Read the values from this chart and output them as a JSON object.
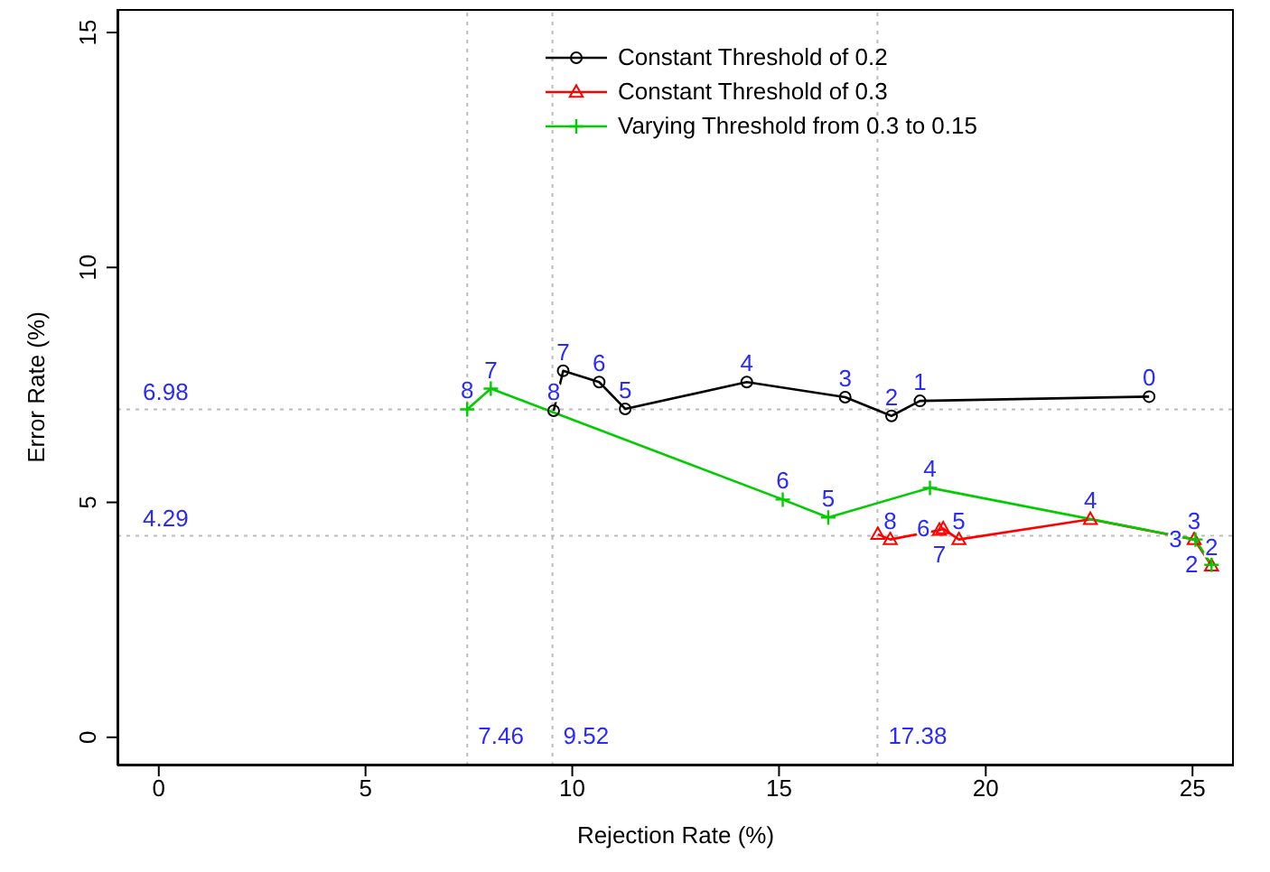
{
  "chart_data": {
    "type": "line",
    "xlabel": "Rejection Rate (%)",
    "ylabel": "Error Rate (%)",
    "xlim": [
      -1,
      26
    ],
    "ylim": [
      -0.6,
      15.5
    ],
    "xticks": [
      0,
      5,
      10,
      15,
      20,
      25
    ],
    "yticks": [
      0,
      5,
      10,
      15
    ],
    "grid": false,
    "legend": "top right",
    "line_style": "solid",
    "series": [
      {
        "name": "Constant Threshold of 0.2",
        "color": "#000000",
        "marker": "circle",
        "x": [
          23.95,
          18.41,
          17.72,
          16.6,
          14.22,
          11.28,
          10.65,
          9.78,
          9.55
        ],
        "values": [
          7.25,
          7.16,
          6.84,
          7.24,
          7.56,
          6.99,
          7.56,
          7.8,
          6.95
        ]
      },
      {
        "name": "Constant Threshold of 0.3",
        "color": "#ff0000",
        "marker": "triangle",
        "x": [
          25.46,
          25.04,
          22.53,
          19.35,
          18.97,
          18.88,
          17.69,
          17.39
        ],
        "values": [
          3.65,
          4.21,
          4.64,
          4.21,
          4.44,
          4.41,
          4.21,
          4.32
        ]
      },
      {
        "name": "Varying Threshold from 0.3 to 0.15",
        "color": "#00cc00",
        "marker": "cross",
        "x": [
          25.46,
          25.07,
          18.65,
          16.19,
          15.09,
          8.03,
          7.46
        ],
        "values": [
          3.67,
          4.21,
          5.31,
          4.68,
          5.06,
          7.42,
          6.98
        ]
      }
    ],
    "annotations": [
      {
        "text": "0",
        "x": 23.95,
        "y": 7.25
      },
      {
        "text": "1",
        "x": 18.41,
        "y": 7.16
      },
      {
        "text": "2",
        "x": 17.72,
        "y": 6.84
      },
      {
        "text": "3",
        "x": 16.6,
        "y": 7.24
      },
      {
        "text": "4",
        "x": 14.22,
        "y": 7.56
      },
      {
        "text": "5",
        "x": 11.28,
        "y": 6.99
      },
      {
        "text": "6",
        "x": 10.65,
        "y": 7.56
      },
      {
        "text": "7",
        "x": 9.78,
        "y": 7.8
      },
      {
        "text": "8",
        "x": 9.55,
        "y": 6.95
      },
      {
        "text": "2",
        "x": 25.46,
        "y": 3.65
      },
      {
        "text": "3",
        "x": 25.04,
        "y": 4.21
      },
      {
        "text": "4",
        "x": 22.53,
        "y": 4.64
      },
      {
        "text": "5",
        "x": 19.35,
        "y": 4.21
      },
      {
        "text": "6",
        "x": 18.97,
        "y": 4.44
      },
      {
        "text": "7",
        "x": 18.88,
        "y": 4.41
      },
      {
        "text": "8",
        "x": 17.69,
        "y": 4.21
      },
      {
        "text": "2",
        "x": 25.46,
        "y": 3.67
      },
      {
        "text": "3",
        "x": 25.07,
        "y": 4.21
      },
      {
        "text": "4",
        "x": 18.65,
        "y": 5.31
      },
      {
        "text": "5",
        "x": 16.19,
        "y": 4.68
      },
      {
        "text": "6",
        "x": 15.09,
        "y": 5.06
      },
      {
        "text": "7",
        "x": 8.03,
        "y": 7.42
      },
      {
        "text": "8",
        "x": 7.46,
        "y": 6.98
      }
    ],
    "ref_lines": [
      {
        "axis": "x",
        "value": 7.46,
        "label": "7.46",
        "color": "#bbbbbb",
        "line_style": "dotted"
      },
      {
        "axis": "x",
        "value": 9.52,
        "label": "9.52",
        "color": "#bbbbbb",
        "line_style": "dotted"
      },
      {
        "axis": "x",
        "value": 17.38,
        "label": "17.38",
        "color": "#bbbbbb",
        "line_style": "dotted"
      },
      {
        "axis": "y",
        "value": 6.98,
        "label": "6.98",
        "color": "#bbbbbb",
        "line_style": "dotted"
      },
      {
        "axis": "y",
        "value": 4.29,
        "label": "4.29",
        "color": "#bbbbbb",
        "line_style": "dotted"
      }
    ]
  }
}
